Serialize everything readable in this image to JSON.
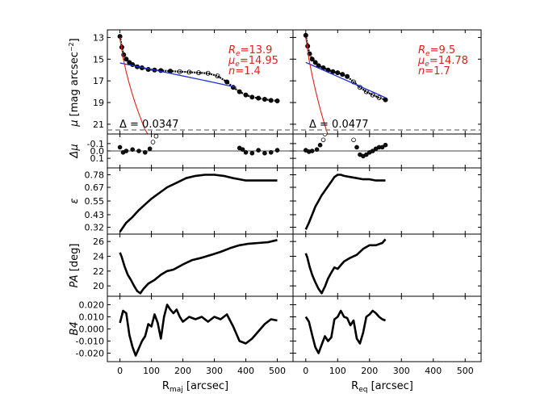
{
  "chart_data": {
    "type": "line",
    "title": "",
    "columns": [
      {
        "key": "left",
        "xlabel": "R",
        "xlabel_sub": "maj",
        "xlabel_unit": "[arcsec]",
        "xlim": [
          -40,
          550
        ],
        "xticks": [
          0,
          100,
          200,
          300,
          400,
          500
        ]
      },
      {
        "key": "right",
        "xlabel": "R",
        "xlabel_sub": "eq",
        "xlabel_unit": "[arcsec]",
        "xlim": [
          -40,
          550
        ],
        "xticks": [
          0,
          100,
          200,
          300,
          400,
          500
        ]
      }
    ],
    "rows": [
      {
        "key": "mu",
        "ylabel": "μ [mag arcsec⁻²]",
        "ylim": [
          12.3,
          21.9
        ],
        "inverted": true,
        "yticks": [
          "13",
          "15",
          "17",
          "19",
          "21"
        ],
        "ytick_values": [
          13,
          15,
          17,
          19,
          21
        ]
      },
      {
        "key": "dmu",
        "ylabel": "Δμ",
        "ylim": [
          -0.23,
          0.23
        ],
        "inverted": true,
        "yticks": [
          "-0.1",
          "0.0",
          "0.1"
        ],
        "ytick_values": [
          -0.1,
          0.0,
          0.1
        ]
      },
      {
        "key": "eps",
        "ylabel": "ε",
        "ylim": [
          0.26,
          0.84
        ],
        "inverted": false,
        "yticks": [
          "0.78",
          "0.67",
          "0.55",
          "0.43",
          "0.32"
        ],
        "ytick_values": [
          0.78,
          0.67,
          0.55,
          0.43,
          0.32
        ]
      },
      {
        "key": "pa",
        "ylabel": "PA [deg]",
        "ylim": [
          18.6,
          27.0
        ],
        "inverted": false,
        "yticks": [
          "26",
          "24",
          "22",
          "20"
        ],
        "ytick_values": [
          26,
          24,
          22,
          20
        ]
      },
      {
        "key": "b4",
        "ylabel": "B4",
        "ylim": [
          -0.027,
          0.027
        ],
        "inverted": false,
        "yticks": [
          "0.020",
          "0.010",
          "0.000",
          "-0.010",
          "-0.020"
        ],
        "ytick_values": [
          0.02,
          0.01,
          0.0,
          -0.01,
          -0.02
        ]
      }
    ],
    "panels": {
      "left": {
        "annotation": {
          "Re_label": "R",
          "Re_sub": "e",
          "Re_value": "=13.9",
          "mue_label": "μ",
          "mue_sub": "e",
          "mue_value": "=14.95",
          "n_label": "n",
          "n_value": "=1.4"
        },
        "delta_label": "Δ = 0.0347",
        "series": {
          "mu_data": {
            "x": [
              0,
              6,
              12,
              20,
              30,
              40,
              55,
              70,
              90,
              110,
              130,
              160,
              190,
              220,
              250,
              280,
              310,
              340,
              360,
              380,
              400,
              420,
              440,
              460,
              480,
              500
            ],
            "y": [
              12.9,
              13.9,
              14.6,
              15.0,
              15.3,
              15.5,
              15.7,
              15.8,
              15.95,
              16.0,
              16.05,
              16.1,
              16.15,
              16.2,
              16.25,
              16.3,
              16.55,
              17.1,
              17.6,
              18.0,
              18.3,
              18.5,
              18.6,
              18.7,
              18.8,
              18.85
            ]
          },
          "mu_bulge": {
            "x": [
              0,
              5,
              10,
              20,
              30,
              40,
              50,
              60,
              70,
              80,
              90
            ],
            "y": [
              13.0,
              13.9,
              14.9,
              16.2,
              17.3,
              18.3,
              19.2,
              20.0,
              20.8,
              21.5,
              22.0
            ]
          },
          "mu_disk": {
            "x": [
              0,
              100,
              200,
              300,
              370
            ],
            "y": [
              15.35,
              15.95,
              16.55,
              17.15,
              17.6
            ]
          },
          "dmu": {
            "x": [
              0,
              10,
              20,
              40,
              60,
              80,
              95,
              105,
              115,
              130,
              380,
              390,
              400,
              420,
              440,
              460,
              480,
              500
            ],
            "y": [
              -0.05,
              0.02,
              0.0,
              -0.02,
              0.0,
              0.02,
              -0.03,
              -0.12,
              -0.2,
              -0.26,
              -0.04,
              -0.02,
              0.02,
              0.03,
              -0.01,
              0.03,
              0.02,
              -0.01
            ]
          },
          "eps": {
            "x": [
              0,
              10,
              20,
              40,
              60,
              80,
              100,
              120,
              150,
              180,
              210,
              240,
              270,
              300,
              330,
              360,
              380,
              400,
              420,
              450,
              480,
              500
            ],
            "y": [
              0.28,
              0.32,
              0.36,
              0.41,
              0.47,
              0.52,
              0.57,
              0.61,
              0.67,
              0.71,
              0.75,
              0.77,
              0.78,
              0.78,
              0.77,
              0.75,
              0.74,
              0.73,
              0.73,
              0.73,
              0.73,
              0.73
            ]
          },
          "pa": {
            "x": [
              0,
              5,
              15,
              25,
              35,
              45,
              55,
              65,
              75,
              90,
              110,
              130,
              150,
              170,
              200,
              230,
              260,
              290,
              320,
              350,
              380,
              410,
              440,
              470,
              500
            ],
            "y": [
              24.5,
              24.0,
              22.6,
              21.5,
              20.8,
              20.0,
              19.3,
              19.0,
              19.6,
              20.3,
              20.8,
              21.5,
              22.0,
              22.2,
              22.9,
              23.5,
              23.8,
              24.2,
              24.6,
              25.1,
              25.5,
              25.7,
              25.8,
              25.9,
              26.2
            ]
          },
          "b4": {
            "x": [
              0,
              10,
              20,
              30,
              40,
              50,
              60,
              70,
              80,
              90,
              100,
              110,
              120,
              130,
              140,
              150,
              160,
              170,
              180,
              190,
              200,
              220,
              240,
              260,
              280,
              300,
              320,
              340,
              360,
              380,
              400,
              420,
              440,
              460,
              480,
              500
            ],
            "y": [
              0.005,
              0.015,
              0.013,
              -0.005,
              -0.015,
              -0.022,
              -0.016,
              -0.01,
              -0.006,
              0.004,
              0.002,
              0.012,
              0.005,
              -0.008,
              0.01,
              0.02,
              0.016,
              0.013,
              0.016,
              0.01,
              0.006,
              0.01,
              0.008,
              0.01,
              0.006,
              0.01,
              0.008,
              0.012,
              0.002,
              -0.01,
              -0.012,
              -0.008,
              -0.002,
              0.004,
              0.008,
              0.007
            ]
          }
        }
      },
      "right": {
        "annotation": {
          "Re_label": "R",
          "Re_sub": "e",
          "Re_value": "=9.5",
          "mue_label": "μ",
          "mue_sub": "e",
          "mue_value": "=14.78",
          "n_label": "n",
          "n_value": "=1.7"
        },
        "delta_label": "Δ = 0.0477",
        "series": {
          "mu_data": {
            "x": [
              0,
              6,
              12,
              20,
              30,
              40,
              55,
              70,
              85,
              100,
              115,
              130,
              150,
              170,
              190,
              210,
              230,
              250
            ],
            "y": [
              12.8,
              13.8,
              14.5,
              15.0,
              15.3,
              15.6,
              15.8,
              16.0,
              16.15,
              16.25,
              16.4,
              16.6,
              17.1,
              17.6,
              18.0,
              18.3,
              18.55,
              18.75
            ]
          },
          "mu_bulge": {
            "x": [
              0,
              5,
              10,
              20,
              30,
              40,
              50,
              60,
              70
            ],
            "y": [
              13.0,
              14.0,
              15.0,
              16.5,
              17.8,
              19.0,
              20.1,
              21.1,
              22.0
            ]
          },
          "mu_disk": {
            "x": [
              0,
              50,
              100,
              150,
              200,
              250
            ],
            "y": [
              15.3,
              15.95,
              16.6,
              17.25,
              17.9,
              18.55
            ]
          },
          "dmu": {
            "x": [
              0,
              10,
              20,
              35,
              45,
              55,
              60,
              70,
              80,
              150,
              160,
              170,
              180,
              190,
              200,
              210,
              220,
              230,
              240,
              250
            ],
            "y": [
              -0.01,
              0.01,
              0.0,
              -0.02,
              -0.08,
              -0.15,
              -0.23,
              -0.26,
              -0.28,
              -0.15,
              -0.05,
              0.05,
              0.07,
              0.05,
              0.02,
              0.0,
              -0.03,
              -0.05,
              -0.05,
              -0.08
            ]
          },
          "eps": {
            "x": [
              0,
              10,
              20,
              30,
              40,
              50,
              60,
              70,
              80,
              90,
              100,
              110,
              120,
              140,
              160,
              180,
              200,
              220,
              240,
              250
            ],
            "y": [
              0.3,
              0.36,
              0.43,
              0.5,
              0.55,
              0.6,
              0.64,
              0.68,
              0.72,
              0.76,
              0.78,
              0.78,
              0.77,
              0.76,
              0.75,
              0.74,
              0.74,
              0.73,
              0.73,
              0.73
            ]
          },
          "pa": {
            "x": [
              0,
              5,
              12,
              20,
              30,
              40,
              50,
              60,
              70,
              80,
              90,
              100,
              110,
              120,
              140,
              160,
              180,
              200,
              220,
              240,
              250
            ],
            "y": [
              24.4,
              23.8,
              22.6,
              21.5,
              20.5,
              19.6,
              19.0,
              19.9,
              21.0,
              21.8,
              22.5,
              22.3,
              22.8,
              23.3,
              23.8,
              24.2,
              25.0,
              25.5,
              25.5,
              25.8,
              26.3
            ]
          },
          "b4": {
            "x": [
              0,
              10,
              20,
              30,
              40,
              50,
              60,
              70,
              80,
              90,
              100,
              110,
              120,
              130,
              140,
              150,
              160,
              170,
              180,
              190,
              200,
              210,
              220,
              230,
              240,
              250
            ],
            "y": [
              0.01,
              0.006,
              -0.005,
              -0.015,
              -0.02,
              -0.013,
              -0.006,
              -0.01,
              -0.007,
              0.008,
              0.01,
              0.015,
              0.01,
              0.009,
              0.003,
              0.007,
              -0.008,
              -0.012,
              -0.003,
              0.01,
              0.012,
              0.015,
              0.013,
              0.01,
              0.008,
              0.007
            ]
          }
        }
      }
    }
  }
}
